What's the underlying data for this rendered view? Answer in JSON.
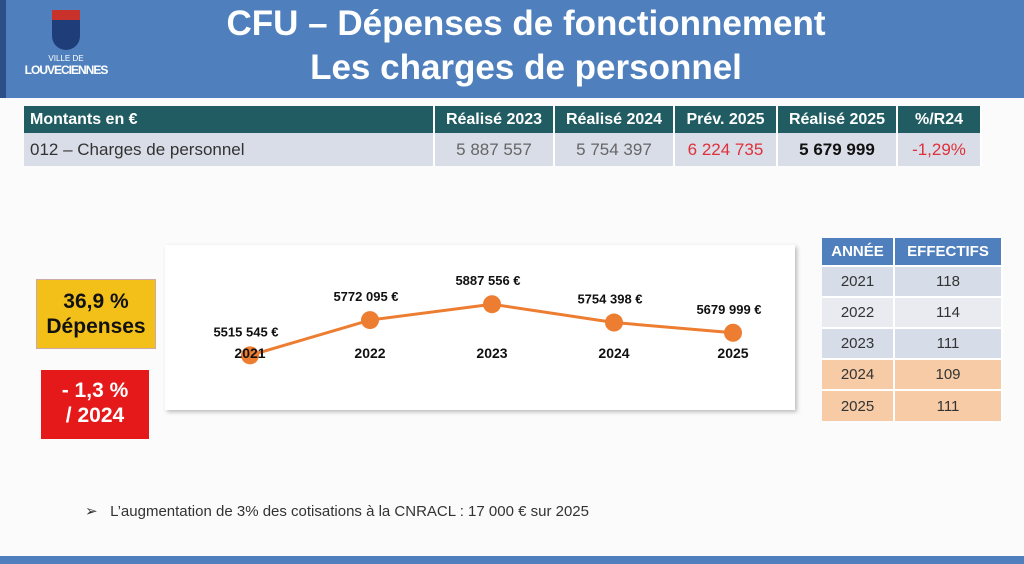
{
  "header": {
    "logo_line1": "VILLE DE",
    "logo_line2": "LOUVECIENNES",
    "title1": "CFU – Dépenses de fonctionnement",
    "title2": "Les charges de personnel"
  },
  "summary_table": {
    "headers": [
      "Montants en €",
      "Réalisé 2023",
      "Réalisé 2024",
      "Prév. 2025",
      "Réalisé 2025",
      "%/R24"
    ],
    "row": [
      "012 – Charges de personnel",
      "5 887 557",
      "5 754 397",
      "6 224 735",
      "5 679 999",
      "-1,29%"
    ]
  },
  "badges": {
    "share_line1": "36,9 %",
    "share_line2": "Dépenses",
    "change_line1": "- 1,3 %",
    "change_line2": "/ 2024"
  },
  "chart_data": {
    "type": "line",
    "categories": [
      "2021",
      "2022",
      "2023",
      "2024",
      "2025"
    ],
    "values": [
      5515545,
      5772095,
      5887556,
      5754398,
      5679999
    ],
    "labels": [
      "5515 545 €",
      "5772 095 €",
      "5887 556 €",
      "5754 398 €",
      "5679 999 €"
    ],
    "color": "#ed7d31",
    "ylim": [
      5300000,
      6100000
    ]
  },
  "staff_table": {
    "headers": [
      "ANNÉE",
      "EFFECTIFS"
    ],
    "rows": [
      [
        "2021",
        "118"
      ],
      [
        "2022",
        "114"
      ],
      [
        "2023",
        "111"
      ],
      [
        "2024",
        "109"
      ],
      [
        "2025",
        "111"
      ]
    ]
  },
  "note": "L’augmentation de 3% des cotisations à la CNRACL : 17 000 € sur 2025"
}
